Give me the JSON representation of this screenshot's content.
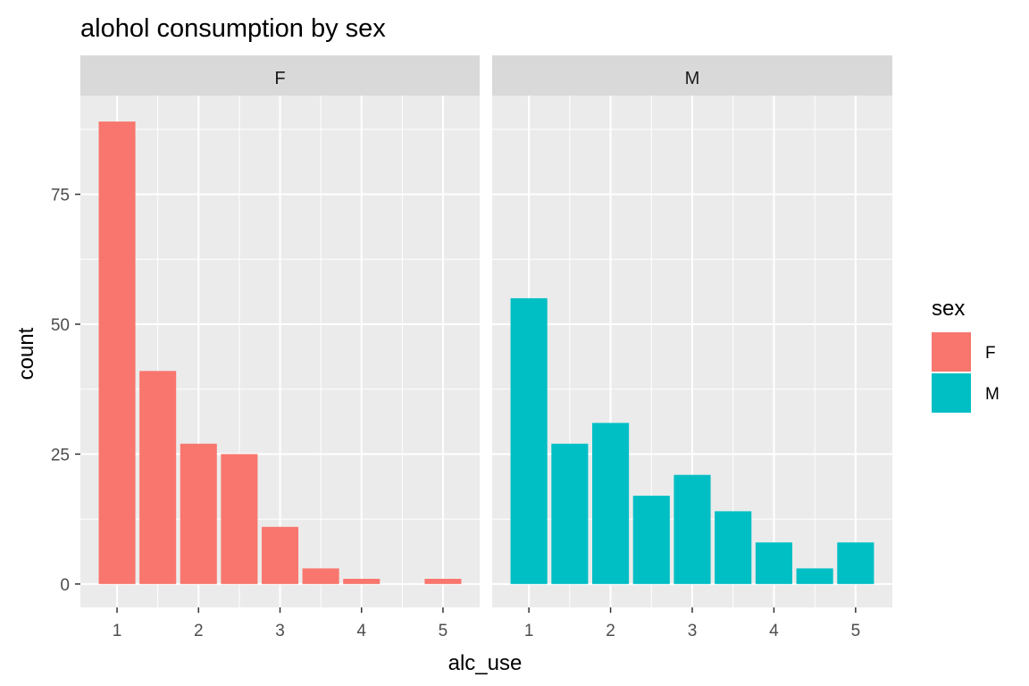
{
  "chart_data": {
    "type": "bar",
    "title": "alohol consumption by sex",
    "xlabel": "alc_use",
    "ylabel": "count",
    "x": [
      1,
      1.5,
      2,
      2.5,
      3,
      3.5,
      4,
      4.5,
      5
    ],
    "x_ticks": [
      1,
      2,
      3,
      4,
      5
    ],
    "y_ticks": [
      0,
      25,
      50,
      75
    ],
    "xlim": [
      0.55,
      5.45
    ],
    "ylim": [
      -4.5,
      94
    ],
    "grid": true,
    "facets": [
      {
        "label": "F",
        "series_name": "F",
        "color": "#F8766D",
        "values": [
          89,
          41,
          27,
          25,
          11,
          3,
          1,
          0,
          1
        ]
      },
      {
        "label": "M",
        "series_name": "M",
        "color": "#00BFC4",
        "values": [
          55,
          27,
          31,
          17,
          21,
          14,
          8,
          3,
          8
        ]
      }
    ],
    "legend": {
      "title": "sex",
      "placement": "right",
      "entries": [
        {
          "label": "F",
          "color": "#F8766D"
        },
        {
          "label": "M",
          "color": "#00BFC4"
        }
      ]
    },
    "colors": {
      "panel": "#EBEBEB",
      "strip": "#D9D9D9",
      "grid": "#FFFFFF"
    }
  }
}
